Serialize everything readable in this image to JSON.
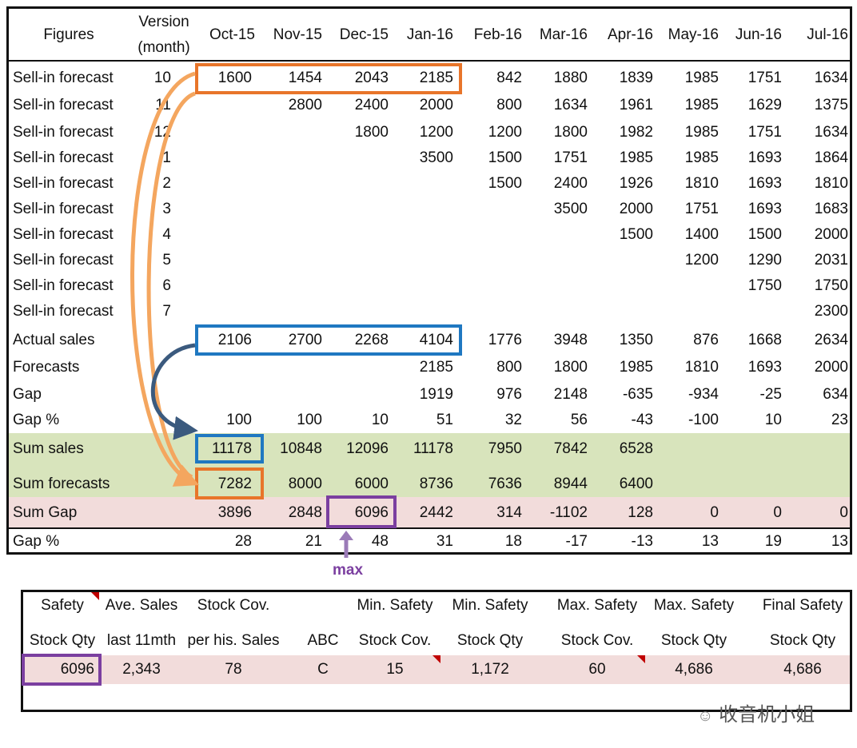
{
  "forecast_table": {
    "header": {
      "figures": "Figures",
      "version_line1": "Version",
      "version_line2": "(month)",
      "months": [
        "Oct-15",
        "Nov-15",
        "Dec-15",
        "Jan-16",
        "Feb-16",
        "Mar-16",
        "Apr-16",
        "May-16",
        "Jun-16",
        "Jul-16"
      ]
    },
    "rows": [
      {
        "label": "Sell-in forecast",
        "version": "10",
        "values": [
          "1600",
          "1454",
          "2043",
          "2185",
          "842",
          "1880",
          "1839",
          "1985",
          "1751",
          "1634"
        ]
      },
      {
        "label": "Sell-in forecast",
        "version": "11",
        "values": [
          "",
          "2800",
          "2400",
          "2000",
          "800",
          "1634",
          "1961",
          "1985",
          "1629",
          "1375"
        ]
      },
      {
        "label": "Sell-in forecast",
        "version": "12",
        "values": [
          "",
          "",
          "1800",
          "1200",
          "1200",
          "1800",
          "1982",
          "1985",
          "1751",
          "1634"
        ]
      },
      {
        "label": "Sell-in forecast",
        "version": "1",
        "values": [
          "",
          "",
          "",
          "3500",
          "1500",
          "1751",
          "1985",
          "1985",
          "1693",
          "1864"
        ]
      },
      {
        "label": "Sell-in forecast",
        "version": "2",
        "values": [
          "",
          "",
          "",
          "",
          "1500",
          "2400",
          "1926",
          "1810",
          "1693",
          "1810"
        ]
      },
      {
        "label": "Sell-in forecast",
        "version": "3",
        "values": [
          "",
          "",
          "",
          "",
          "",
          "3500",
          "2000",
          "1751",
          "1693",
          "1683"
        ]
      },
      {
        "label": "Sell-in forecast",
        "version": "4",
        "values": [
          "",
          "",
          "",
          "",
          "",
          "",
          "1500",
          "1400",
          "1500",
          "2000"
        ]
      },
      {
        "label": "Sell-in forecast",
        "version": "5",
        "values": [
          "",
          "",
          "",
          "",
          "",
          "",
          "",
          "1200",
          "1290",
          "2031"
        ]
      },
      {
        "label": "Sell-in forecast",
        "version": "6",
        "values": [
          "",
          "",
          "",
          "",
          "",
          "",
          "",
          "",
          "1750",
          "1750"
        ]
      },
      {
        "label": "Sell-in forecast",
        "version": "7",
        "values": [
          "",
          "",
          "",
          "",
          "",
          "",
          "",
          "",
          "",
          "2300"
        ]
      },
      {
        "label": "Actual sales",
        "version": "",
        "values": [
          "2106",
          "2700",
          "2268",
          "4104",
          "1776",
          "3948",
          "1350",
          "876",
          "1668",
          "2634"
        ]
      },
      {
        "label": "Forecasts",
        "version": "",
        "values": [
          "",
          "",
          "",
          "2185",
          "800",
          "1800",
          "1985",
          "1810",
          "1693",
          "2000"
        ]
      },
      {
        "label": "Gap",
        "version": "",
        "values": [
          "",
          "",
          "",
          "1919",
          "976",
          "2148",
          "-635",
          "-934",
          "-25",
          "634"
        ]
      },
      {
        "label": "Gap %",
        "version": "",
        "values": [
          "100",
          "100",
          "10",
          "51",
          "32",
          "56",
          "-43",
          "-100",
          "10",
          "23"
        ]
      },
      {
        "label": "Sum sales",
        "version": "",
        "values": [
          "11178",
          "10848",
          "12096",
          "11178",
          "7950",
          "7842",
          "6528",
          "",
          "",
          ""
        ]
      },
      {
        "label": "Sum forecasts",
        "version": "",
        "values": [
          "7282",
          "8000",
          "6000",
          "8736",
          "7636",
          "8944",
          "6400",
          "",
          "",
          ""
        ]
      },
      {
        "label": "Sum Gap",
        "version": "",
        "values": [
          "3896",
          "2848",
          "6096",
          "2442",
          "314",
          "-1102",
          "128",
          "0",
          "0",
          "0"
        ]
      },
      {
        "label": "Gap %",
        "version": "",
        "values": [
          "28",
          "21",
          "48",
          "31",
          "18",
          "-17",
          "-13",
          "13",
          "19",
          "13"
        ]
      }
    ],
    "max_label": "max"
  },
  "safety_table": {
    "header_line1": [
      "Safety",
      "Ave. Sales",
      "Stock Cov.",
      "",
      "Min. Safety",
      "Min. Safety",
      "Max. Safety",
      "Max. Safety",
      "Final Safety"
    ],
    "header_line2": [
      "Stock Qty",
      "last 11mth",
      "per his. Sales",
      "ABC",
      "Stock Cov.",
      "Stock Qty",
      "Stock Cov.",
      "Stock Qty",
      "Stock Qty"
    ],
    "values": [
      "6096",
      "2,343",
      "78",
      "C",
      "15",
      "1,172",
      "60",
      "4,686",
      "4,686"
    ]
  },
  "watermark": "收音机小姐",
  "colors": {
    "orange": "#e8752a",
    "orange_light": "#f4a65f",
    "blue": "#1f78c1",
    "blue_dark": "#3b5a7e",
    "purple": "#7b3fa0",
    "green_bg": "#d8e4bc",
    "pink_bg": "#f2dcdb"
  }
}
